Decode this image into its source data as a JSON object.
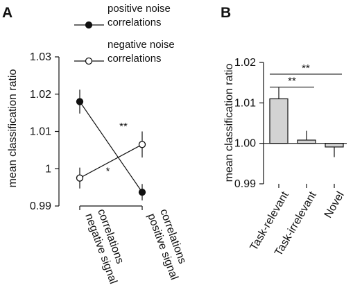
{
  "chart_data": [
    {
      "panel": "A",
      "type": "line",
      "ylabel": "mean classification ratio",
      "ylim": [
        0.99,
        1.03
      ],
      "yticks": [
        {
          "value": 0.99,
          "label": "0.99"
        },
        {
          "value": 1.0,
          "label": "1"
        },
        {
          "value": 1.01,
          "label": "1.01"
        },
        {
          "value": 1.02,
          "label": "1.02"
        },
        {
          "value": 1.03,
          "label": "1.03"
        }
      ],
      "categories": [
        [
          "negative signal",
          "correlations"
        ],
        [
          "positive signal",
          "correlations"
        ]
      ],
      "series": [
        {
          "name": [
            "positive noise",
            "correlations"
          ],
          "marker": "filled",
          "values": [
            1.018,
            0.9937
          ],
          "errors": [
            0.0032,
            0.0022
          ]
        },
        {
          "name": [
            "negative noise",
            "correlations"
          ],
          "marker": "open",
          "values": [
            0.9975,
            1.0065
          ],
          "errors": [
            0.0028,
            0.0035
          ]
        }
      ],
      "annotations": [
        {
          "text": "**",
          "x_frac": 0.7,
          "y": 1.0105
        },
        {
          "text": "*",
          "x_frac": 0.45,
          "y": 0.9985
        }
      ],
      "legend_placement": "top"
    },
    {
      "panel": "B",
      "type": "bar",
      "ylabel": "mean classification ratio",
      "ylim": [
        0.99,
        1.02
      ],
      "baseline": 1.0,
      "yticks": [
        {
          "value": 0.99,
          "label": "0.99"
        },
        {
          "value": 1.0,
          "label": "1.00"
        },
        {
          "value": 1.01,
          "label": "1.01"
        },
        {
          "value": 1.02,
          "label": "1.02"
        }
      ],
      "categories": [
        "Task-relevant",
        "Task-irrelevant",
        "Novel"
      ],
      "values": [
        1.011,
        1.0008,
        0.9991
      ],
      "errors": [
        0.0028,
        0.0023,
        0.0025
      ],
      "bar_color": "#d3d3d3",
      "significance": [
        {
          "from": 0,
          "to": 2,
          "text": "**",
          "y": 1.0171
        },
        {
          "from": 0,
          "to": 1,
          "text": "**",
          "y": 1.0139
        }
      ]
    }
  ]
}
